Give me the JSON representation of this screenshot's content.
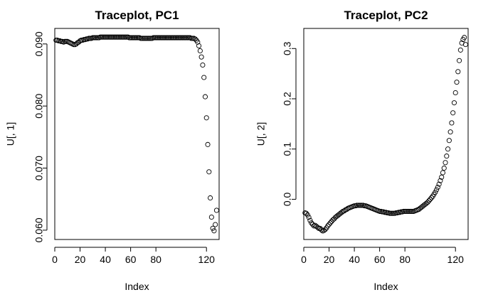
{
  "chart_data": [
    {
      "type": "scatter",
      "title": "Traceplot, PC1",
      "xlabel": "Index",
      "ylabel": "U[, 1]",
      "xlim": [
        0,
        130
      ],
      "ylim": [
        0.0585,
        0.0925
      ],
      "xticks": [
        0,
        20,
        40,
        60,
        80,
        120
      ],
      "yticks": [
        0.06,
        0.07,
        0.08,
        0.09
      ],
      "ytick_labels": [
        "0.060",
        "0.070",
        "0.080",
        "0.090"
      ],
      "x": [
        1,
        2,
        3,
        4,
        5,
        6,
        7,
        8,
        9,
        10,
        11,
        12,
        13,
        14,
        15,
        16,
        17,
        18,
        19,
        20,
        21,
        22,
        23,
        24,
        25,
        26,
        27,
        28,
        29,
        30,
        31,
        32,
        33,
        34,
        35,
        36,
        37,
        38,
        39,
        40,
        41,
        42,
        43,
        44,
        45,
        46,
        47,
        48,
        49,
        50,
        51,
        52,
        53,
        54,
        55,
        56,
        57,
        58,
        59,
        60,
        61,
        62,
        63,
        64,
        65,
        66,
        67,
        68,
        69,
        70,
        71,
        72,
        73,
        74,
        75,
        76,
        77,
        78,
        79,
        80,
        81,
        82,
        83,
        84,
        85,
        86,
        87,
        88,
        89,
        90,
        91,
        92,
        93,
        94,
        95,
        96,
        97,
        98,
        99,
        100,
        101,
        102,
        103,
        104,
        105,
        106,
        107,
        108,
        109,
        110,
        111,
        112,
        113,
        114,
        115,
        116,
        117,
        118,
        119,
        120,
        121,
        122,
        123,
        124,
        125,
        126,
        127,
        128
      ],
      "y": [
        0.0906,
        0.0906,
        0.0905,
        0.0905,
        0.0904,
        0.0904,
        0.0903,
        0.0904,
        0.0904,
        0.0904,
        0.0903,
        0.0902,
        0.0901,
        0.09,
        0.0899,
        0.0899,
        0.09,
        0.0902,
        0.0903,
        0.0905,
        0.0906,
        0.0906,
        0.0907,
        0.0907,
        0.0908,
        0.0908,
        0.0909,
        0.0909,
        0.0909,
        0.091,
        0.091,
        0.091,
        0.091,
        0.091,
        0.091,
        0.0911,
        0.0911,
        0.0911,
        0.0911,
        0.0911,
        0.0911,
        0.0911,
        0.0911,
        0.0911,
        0.0911,
        0.0911,
        0.0911,
        0.0911,
        0.0911,
        0.0911,
        0.0911,
        0.0911,
        0.0911,
        0.0911,
        0.0911,
        0.0911,
        0.0911,
        0.0911,
        0.091,
        0.091,
        0.091,
        0.091,
        0.091,
        0.091,
        0.091,
        0.091,
        0.091,
        0.0909,
        0.0909,
        0.0909,
        0.0909,
        0.0909,
        0.0909,
        0.0909,
        0.0909,
        0.0909,
        0.0909,
        0.091,
        0.091,
        0.091,
        0.091,
        0.091,
        0.091,
        0.091,
        0.091,
        0.091,
        0.091,
        0.091,
        0.091,
        0.091,
        0.091,
        0.091,
        0.091,
        0.091,
        0.091,
        0.091,
        0.091,
        0.091,
        0.091,
        0.091,
        0.091,
        0.091,
        0.091,
        0.091,
        0.091,
        0.091,
        0.091,
        0.0909,
        0.0909,
        0.0909,
        0.0908,
        0.0906,
        0.0903,
        0.0897,
        0.0889,
        0.0879,
        0.0866,
        0.0846,
        0.0815,
        0.0781,
        0.0738,
        0.0694,
        0.0652,
        0.0621,
        0.0603,
        0.0599,
        0.0609,
        0.0632
      ]
    },
    {
      "type": "scatter",
      "title": "Traceplot, PC2",
      "xlabel": "Index",
      "ylabel": "U[, 2]",
      "xlim": [
        0,
        130
      ],
      "ylim": [
        -0.08,
        0.34
      ],
      "xticks": [
        0,
        20,
        40,
        60,
        80,
        120
      ],
      "yticks": [
        0.0,
        0.1,
        0.2,
        0.3
      ],
      "ytick_labels": [
        "0.0",
        "0.1",
        "0.2",
        "0.3"
      ],
      "x": [
        1,
        2,
        3,
        4,
        5,
        6,
        7,
        8,
        9,
        10,
        11,
        12,
        13,
        14,
        15,
        16,
        17,
        18,
        19,
        20,
        21,
        22,
        23,
        24,
        25,
        26,
        27,
        28,
        29,
        30,
        31,
        32,
        33,
        34,
        35,
        36,
        37,
        38,
        39,
        40,
        41,
        42,
        43,
        44,
        45,
        46,
        47,
        48,
        49,
        50,
        51,
        52,
        53,
        54,
        55,
        56,
        57,
        58,
        59,
        60,
        61,
        62,
        63,
        64,
        65,
        66,
        67,
        68,
        69,
        70,
        71,
        72,
        73,
        74,
        75,
        76,
        77,
        78,
        79,
        80,
        81,
        82,
        83,
        84,
        85,
        86,
        87,
        88,
        89,
        90,
        91,
        92,
        93,
        94,
        95,
        96,
        97,
        98,
        99,
        100,
        101,
        102,
        103,
        104,
        105,
        106,
        107,
        108,
        109,
        110,
        111,
        112,
        113,
        114,
        115,
        116,
        117,
        118,
        119,
        120,
        121,
        122,
        123,
        124,
        125,
        126,
        127,
        128
      ],
      "y": [
        -0.027,
        -0.028,
        -0.031,
        -0.036,
        -0.042,
        -0.047,
        -0.05,
        -0.053,
        -0.052,
        -0.054,
        -0.056,
        -0.058,
        -0.058,
        -0.061,
        -0.063,
        -0.062,
        -0.06,
        -0.057,
        -0.053,
        -0.05,
        -0.047,
        -0.044,
        -0.041,
        -0.039,
        -0.036,
        -0.034,
        -0.032,
        -0.03,
        -0.028,
        -0.026,
        -0.024,
        -0.023,
        -0.021,
        -0.02,
        -0.018,
        -0.017,
        -0.016,
        -0.015,
        -0.014,
        -0.013,
        -0.013,
        -0.012,
        -0.012,
        -0.012,
        -0.012,
        -0.012,
        -0.012,
        -0.013,
        -0.013,
        -0.014,
        -0.015,
        -0.016,
        -0.017,
        -0.018,
        -0.019,
        -0.02,
        -0.021,
        -0.022,
        -0.023,
        -0.024,
        -0.024,
        -0.025,
        -0.025,
        -0.026,
        -0.026,
        -0.027,
        -0.027,
        -0.028,
        -0.028,
        -0.028,
        -0.028,
        -0.028,
        -0.027,
        -0.027,
        -0.026,
        -0.026,
        -0.025,
        -0.025,
        -0.024,
        -0.024,
        -0.024,
        -0.024,
        -0.024,
        -0.024,
        -0.024,
        -0.024,
        -0.024,
        -0.023,
        -0.022,
        -0.021,
        -0.02,
        -0.018,
        -0.016,
        -0.014,
        -0.012,
        -0.01,
        -0.008,
        -0.006,
        -0.003,
        0.0,
        0.003,
        0.006,
        0.01,
        0.014,
        0.019,
        0.024,
        0.03,
        0.037,
        0.044,
        0.053,
        0.062,
        0.073,
        0.086,
        0.1,
        0.117,
        0.134,
        0.152,
        0.172,
        0.192,
        0.212,
        0.233,
        0.254,
        0.276,
        0.297,
        0.311,
        0.318,
        0.322,
        0.308
      ]
    }
  ]
}
